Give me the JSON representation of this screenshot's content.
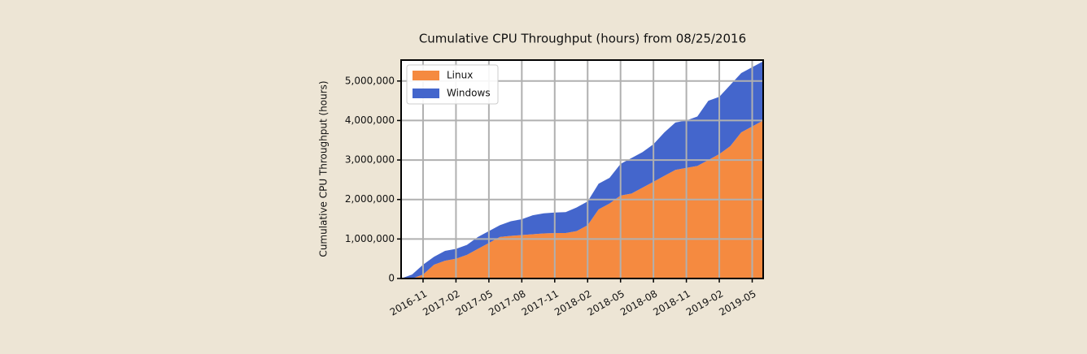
{
  "chart_data": {
    "type": "stacked-area",
    "title": "Cumulative CPU Throughput (hours) from 08/25/2016",
    "y_label": "Cumulative CPU Throughput (hours)",
    "x": [
      "2016-09",
      "2016-10",
      "2016-11",
      "2016-12",
      "2017-01",
      "2017-02",
      "2017-03",
      "2017-04",
      "2017-05",
      "2017-06",
      "2017-07",
      "2017-08",
      "2017-09",
      "2017-10",
      "2017-11",
      "2017-12",
      "2018-01",
      "2018-02",
      "2018-03",
      "2018-04",
      "2018-05",
      "2018-06",
      "2018-07",
      "2018-08",
      "2018-09",
      "2018-10",
      "2018-11",
      "2018-12",
      "2019-01",
      "2019-02",
      "2019-03",
      "2019-04",
      "2019-05",
      "2019-06"
    ],
    "series": [
      {
        "name": "Linux",
        "color": "#f58a40",
        "values": [
          0,
          0,
          100000,
          350000,
          450000,
          500000,
          600000,
          750000,
          900000,
          1050000,
          1080000,
          1100000,
          1120000,
          1140000,
          1150000,
          1150000,
          1200000,
          1350000,
          1750000,
          1900000,
          2100000,
          2150000,
          2300000,
          2450000,
          2600000,
          2750000,
          2800000,
          2850000,
          3000000,
          3150000,
          3350000,
          3700000,
          3850000,
          4000000
        ]
      },
      {
        "name": "Windows",
        "color": "#4466cc",
        "values": [
          0,
          100000,
          250000,
          200000,
          250000,
          250000,
          250000,
          300000,
          300000,
          300000,
          370000,
          400000,
          480000,
          510000,
          520000,
          530000,
          600000,
          600000,
          650000,
          650000,
          800000,
          900000,
          900000,
          950000,
          1100000,
          1200000,
          1200000,
          1250000,
          1500000,
          1450000,
          1550000,
          1500000,
          1500000,
          1500000
        ]
      }
    ],
    "xlim": [
      "2016-09",
      "2019-06"
    ],
    "xticks": [
      "2016-11",
      "2017-02",
      "2017-05",
      "2017-08",
      "2017-11",
      "2018-02",
      "2018-05",
      "2018-08",
      "2018-11",
      "2019-02",
      "2019-05"
    ],
    "ylim": [
      0,
      5530000
    ],
    "yticks": [
      0,
      {
        "value": 1000000,
        "label": "1,000,000"
      },
      {
        "value": 2000000,
        "label": "2,000,000"
      },
      {
        "value": 3000000,
        "label": "3,000,000"
      },
      {
        "value": 4000000,
        "label": "4,000,000"
      },
      {
        "value": 5000000,
        "label": "5,000,000"
      }
    ],
    "grid": true,
    "legend": "upper-left"
  }
}
